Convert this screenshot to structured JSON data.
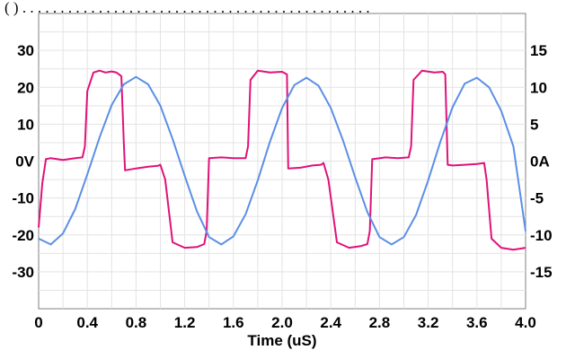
{
  "top_caption": "(                    ) . . . . . . . . . . . . . . . . . . . . . . . . . . . . . . . . . . . . . . . . . . . . . .",
  "chart_data": {
    "type": "line",
    "title": "",
    "xlabel": "Time (uS)",
    "ylabel_left": "",
    "ylabel_right": "",
    "xlim": [
      0,
      4.0
    ],
    "ylim_left": [
      -40,
      40
    ],
    "ylim_right": [
      -20,
      20
    ],
    "grid": true,
    "x_ticks": [
      {
        "value": 0,
        "label": "0"
      },
      {
        "value": 0.4,
        "label": "0.4"
      },
      {
        "value": 0.8,
        "label": "0.8"
      },
      {
        "value": 1.2,
        "label": "1.2"
      },
      {
        "value": 1.6,
        "label": "1.6"
      },
      {
        "value": 2.0,
        "label": "2.0"
      },
      {
        "value": 2.4,
        "label": "2.4"
      },
      {
        "value": 2.8,
        "label": "2.8"
      },
      {
        "value": 3.2,
        "label": "3.2"
      },
      {
        "value": 3.6,
        "label": "3.6"
      },
      {
        "value": 4.0,
        "label": "4.0"
      }
    ],
    "y_ticks_left": [
      {
        "value": 30,
        "label": "30"
      },
      {
        "value": 20,
        "label": "20"
      },
      {
        "value": 10,
        "label": "10"
      },
      {
        "value": 0,
        "label": "0V"
      },
      {
        "value": -10,
        "label": "-10"
      },
      {
        "value": -20,
        "label": "-20"
      },
      {
        "value": -30,
        "label": "-30"
      }
    ],
    "y_ticks_right": [
      {
        "value": 15,
        "label": "15"
      },
      {
        "value": 10,
        "label": "10"
      },
      {
        "value": 5,
        "label": "5"
      },
      {
        "value": 0,
        "label": "0A"
      },
      {
        "value": -5,
        "label": "-5"
      },
      {
        "value": -10,
        "label": "-10"
      },
      {
        "value": -15,
        "label": "-15"
      }
    ],
    "series": [
      {
        "id": "voltage",
        "axis": "left",
        "color": "#e0127a",
        "x": [
          0,
          0.03,
          0.06,
          0.1,
          0.2,
          0.3,
          0.36,
          0.38,
          0.4,
          0.45,
          0.5,
          0.55,
          0.6,
          0.64,
          0.68,
          0.7,
          0.71,
          0.8,
          0.9,
          0.98,
          1.0,
          1.04,
          1.1,
          1.2,
          1.3,
          1.36,
          1.38,
          1.4,
          1.5,
          1.6,
          1.7,
          1.72,
          1.74,
          1.8,
          1.9,
          2.0,
          2.04,
          2.05,
          2.15,
          2.25,
          2.32,
          2.34,
          2.38,
          2.45,
          2.55,
          2.65,
          2.7,
          2.72,
          2.74,
          2.85,
          2.95,
          3.04,
          3.06,
          3.08,
          3.15,
          3.25,
          3.32,
          3.34,
          3.36,
          3.4,
          3.5,
          3.6,
          3.66,
          3.68,
          3.72,
          3.8,
          3.9,
          4.0
        ],
        "y": [
          -18,
          -6,
          0.5,
          0.8,
          0.3,
          0.8,
          1.0,
          4,
          19,
          24,
          24.5,
          24,
          24.3,
          24,
          23,
          5,
          -2.5,
          -2,
          -1.5,
          -1.3,
          -1.0,
          -5,
          -22,
          -23.5,
          -23.3,
          -22.5,
          -19,
          0.8,
          1.0,
          0.8,
          0.8,
          4,
          22,
          24.5,
          24,
          24.2,
          23.5,
          -2.0,
          -1.8,
          -1.2,
          -1.0,
          -0.5,
          -5,
          -22,
          -23.5,
          -23,
          -22.5,
          -19,
          0.5,
          1.0,
          0.8,
          1.0,
          4,
          22,
          24.5,
          24,
          24.2,
          23.5,
          -1.0,
          -1.2,
          -1.0,
          -0.8,
          -0.5,
          -5,
          -21,
          -23.5,
          -24,
          -23.5
        ]
      },
      {
        "id": "current",
        "axis": "right",
        "color": "#5b8fe6",
        "x": [
          0,
          0.1,
          0.2,
          0.3,
          0.4,
          0.5,
          0.6,
          0.7,
          0.8,
          0.9,
          1.0,
          1.1,
          1.2,
          1.3,
          1.4,
          1.5,
          1.6,
          1.7,
          1.8,
          1.9,
          2.0,
          2.1,
          2.2,
          2.3,
          2.4,
          2.5,
          2.6,
          2.7,
          2.8,
          2.9,
          3.0,
          3.1,
          3.2,
          3.3,
          3.4,
          3.5,
          3.6,
          3.7,
          3.8,
          3.9,
          4.0
        ],
        "y": [
          -10.5,
          -11.3,
          -9.8,
          -6.5,
          -1.8,
          3.2,
          7.6,
          10.4,
          11.4,
          10.4,
          7.5,
          3.0,
          -2.0,
          -6.8,
          -10.3,
          -11.3,
          -10.2,
          -7.2,
          -2.6,
          2.6,
          7.2,
          10.3,
          11.3,
          10.2,
          7.2,
          2.8,
          -2.2,
          -6.9,
          -10.3,
          -11.3,
          -10.3,
          -7.3,
          -2.6,
          2.6,
          7.3,
          10.5,
          11.3,
          10.0,
          6.8,
          2.0,
          -9.5
        ]
      }
    ]
  }
}
